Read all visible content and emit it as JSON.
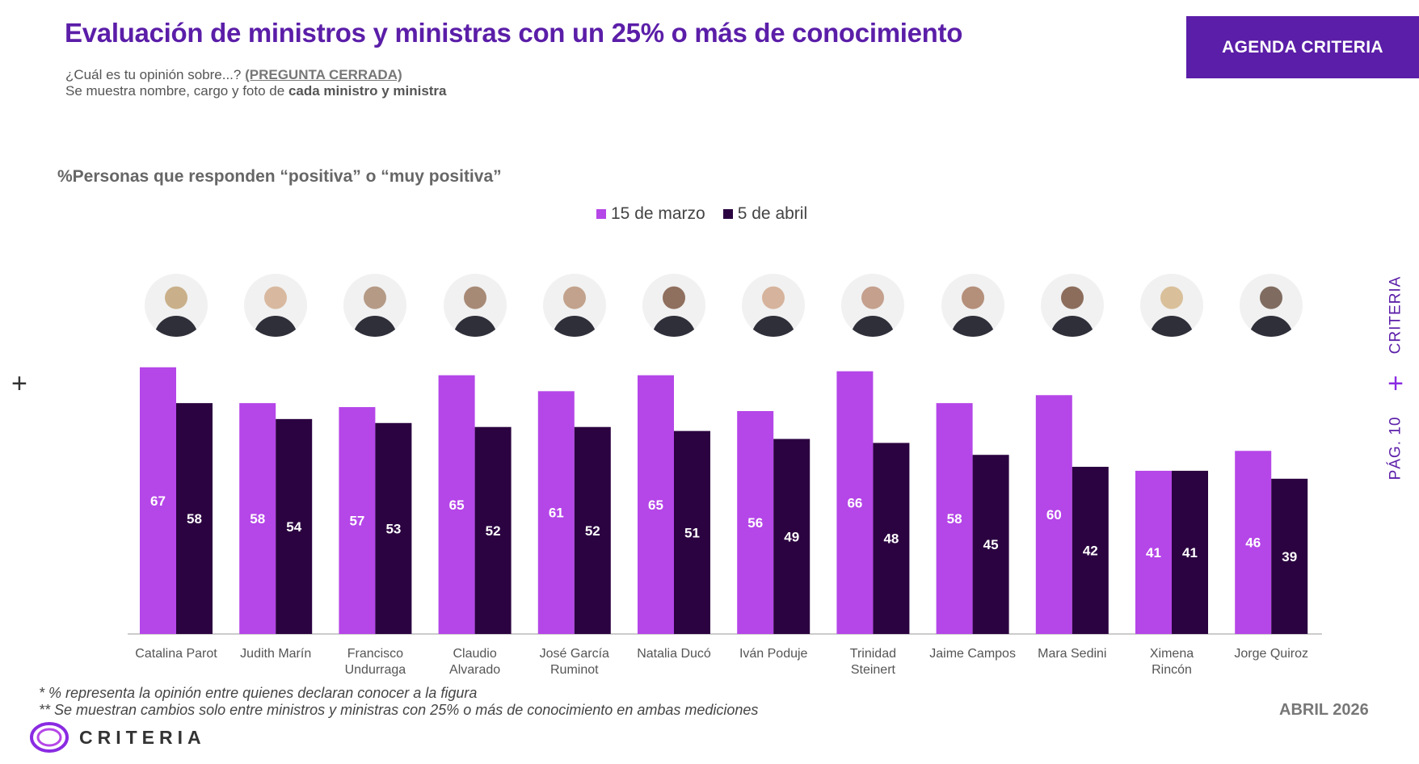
{
  "header": {
    "title": "Evaluación de ministros y ministras con un 25% o más de conocimiento",
    "question": "¿Cuál es tu opinión sobre...?",
    "question_tag": "(PREGUNTA CERRADA)",
    "shown_prefix": "Se muestra nombre, cargo y foto de",
    "shown_bold": "cada ministro y ministra",
    "badge": "AGENDA CRITERIA"
  },
  "side": {
    "brand": "CRITERIA",
    "page": "PÁG. 10"
  },
  "footer": {
    "note1": "* % representa la opinión entre quienes declaran conocer a la figura",
    "note2": "** Se muestran cambios solo entre ministros y ministras con 25% o más de conocimiento en ambas mediciones",
    "date": "ABRIL 2026",
    "logo_text": "CRITERIA"
  },
  "colors": {
    "accent": "#5b1ea8",
    "series1": "#b546e8",
    "series2": "#2b0340"
  },
  "chart_data": {
    "type": "bar",
    "title": "%Personas que responden “positiva” o “muy positiva”",
    "xlabel": "",
    "ylabel": "",
    "ylim": [
      0,
      70
    ],
    "legend_position": "top-center",
    "categories": [
      "Catalina Parot",
      "Judith Marín",
      "Francisco Undurraga",
      "Claudio Alvarado",
      "José García Ruminot",
      "Natalia Ducó",
      "Iván Poduje",
      "Trinidad Steinert",
      "Jaime Campos",
      "Mara Sedini",
      "Ximena Rincón",
      "Jorge Quiroz"
    ],
    "series": [
      {
        "name": "15 de marzo",
        "values": [
          67,
          58,
          57,
          65,
          61,
          65,
          56,
          66,
          58,
          60,
          41,
          46
        ]
      },
      {
        "name": "5 de abril",
        "values": [
          58,
          54,
          53,
          52,
          52,
          51,
          49,
          48,
          45,
          42,
          41,
          39
        ]
      }
    ]
  }
}
